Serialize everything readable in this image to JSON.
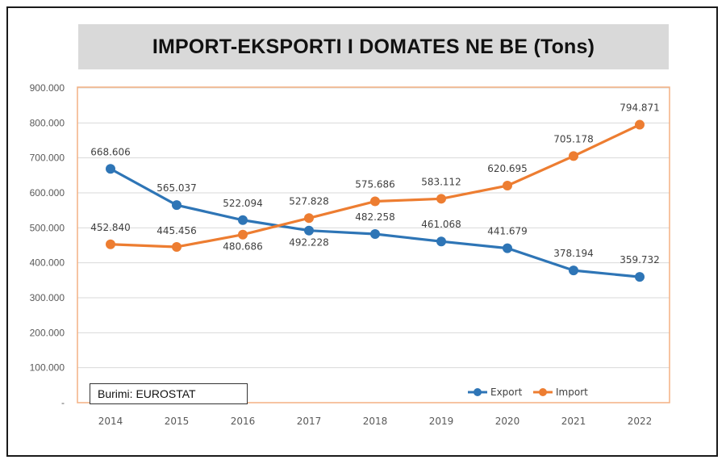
{
  "chart_data": {
    "type": "line",
    "title": "IMPORT-EKSPORTI I DOMATES NE BE (Tons)",
    "source": "Burimi: EUROSTAT",
    "x": [
      "2014",
      "2015",
      "2016",
      "2017",
      "2018",
      "2019",
      "2020",
      "2021",
      "2022"
    ],
    "yticks": [
      "-",
      "100.000",
      "200.000",
      "300.000",
      "400.000",
      "500.000",
      "600.000",
      "700.000",
      "800.000",
      "900.000"
    ],
    "ylim": [
      0,
      900000
    ],
    "grid": true,
    "legend_position": "bottom-right",
    "series": [
      {
        "name": "Export",
        "color": "#2e75b6",
        "values": [
          668606,
          565037,
          522094,
          492228,
          482258,
          461068,
          441679,
          378194,
          359732
        ],
        "labels": [
          "668.606",
          "565.037",
          "522.094",
          "492.228",
          "482.258",
          "461.068",
          "441.679",
          "378.194",
          "359.732"
        ]
      },
      {
        "name": "Import",
        "color": "#ed7d31",
        "values": [
          452840,
          445456,
          480686,
          527828,
          575686,
          583112,
          620695,
          705178,
          794871
        ],
        "labels": [
          "452.840",
          "445.456",
          "480.686",
          "527.828",
          "575.686",
          "583.112",
          "620.695",
          "705.178",
          "794.871"
        ]
      }
    ]
  }
}
